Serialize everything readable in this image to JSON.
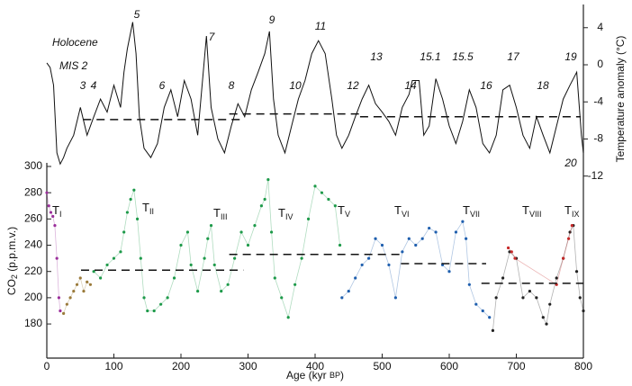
{
  "chart_data": {
    "type": "scatter",
    "x_label": {
      "main": "Age (kyr ",
      "small": "BP",
      "end": ")"
    },
    "y_label": {
      "main": "CO",
      "sub": "2",
      "end": " (p.p.m.v.)"
    },
    "y2_label": "Temperature anomaly (°C)",
    "xlim": [
      0,
      800
    ],
    "xticks": [
      0,
      100,
      200,
      300,
      400,
      500,
      600,
      700,
      800
    ],
    "ylim": [
      154,
      300
    ],
    "yticks": [
      180,
      200,
      220,
      240,
      260,
      280,
      300
    ],
    "y2lim": [
      -13,
      6.5
    ],
    "y2ticks": [
      4,
      0,
      -4,
      -8,
      -12
    ],
    "annotations": [
      "Holocene",
      "MIS 2",
      "3",
      "4",
      "5",
      "6",
      "7",
      "8",
      "9",
      "10",
      "11",
      "12",
      "13",
      "14",
      "15.1",
      "15.5",
      "16",
      "17",
      "18",
      "19",
      "20"
    ],
    "terminations": [
      {
        "main": "T",
        "sub": "I"
      },
      {
        "main": "T",
        "sub": "II"
      },
      {
        "main": "T",
        "sub": "III"
      },
      {
        "main": "T",
        "sub": "IV"
      },
      {
        "main": "T",
        "sub": "V"
      },
      {
        "main": "T",
        "sub": "VI"
      },
      {
        "main": "T",
        "sub": "VII"
      },
      {
        "main": "T",
        "sub": "VIII"
      },
      {
        "main": "T",
        "sub": "IX"
      }
    ],
    "temp_means": [
      {
        "x": [
          54,
          293
        ],
        "value": -5.9
      },
      {
        "x": [
          272,
          467
        ],
        "value": -5.3
      },
      {
        "x": [
          467,
          796
        ],
        "value": -5.6
      }
    ],
    "co2_means": [
      {
        "x": [
          51,
          293
        ],
        "value": 221
      },
      {
        "x": [
          272,
          528
        ],
        "value": 233
      },
      {
        "x": [
          528,
          655
        ],
        "value": 226
      },
      {
        "x": [
          648,
          800
        ],
        "value": 211
      }
    ],
    "series": [
      {
        "axis": "y2",
        "color": "#111111",
        "style": "line",
        "x": [
          0,
          5,
          10,
          15,
          20,
          25,
          30,
          40,
          50,
          60,
          70,
          80,
          90,
          100,
          110,
          115,
          120,
          128,
          133,
          138,
          145,
          155,
          165,
          175,
          185,
          195,
          205,
          215,
          225,
          238,
          245,
          255,
          265,
          275,
          285,
          295,
          305,
          315,
          325,
          332,
          338,
          345,
          355,
          365,
          375,
          385,
          395,
          405,
          415,
          425,
          432,
          440,
          450,
          460,
          470,
          480,
          490,
          500,
          510,
          520,
          530,
          540,
          545,
          555,
          562,
          570,
          580,
          590,
          600,
          610,
          620,
          630,
          640,
          650,
          660,
          670,
          680,
          690,
          700,
          710,
          720,
          730,
          740,
          750,
          760,
          770,
          780,
          790,
          797,
          800
        ],
        "values": [
          0.2,
          -0.3,
          -2.2,
          -9.5,
          -10.7,
          -10,
          -9,
          -7.6,
          -4.6,
          -7.6,
          -5.6,
          -3.7,
          -5.1,
          -2.2,
          -4.6,
          -0.8,
          1.7,
          4.6,
          1.2,
          -5.6,
          -9,
          -10,
          -8.5,
          -4.6,
          -2.7,
          -5.6,
          -1.7,
          -3.7,
          -7.6,
          3.1,
          -4.6,
          -8,
          -9.5,
          -6.6,
          -4.2,
          -5.6,
          -2.7,
          -0.8,
          1.2,
          3.6,
          -3.7,
          -7.6,
          -9.5,
          -6.6,
          -3.7,
          -1.7,
          1.2,
          2.6,
          1.2,
          -3.7,
          -7.6,
          -9,
          -7.6,
          -5.6,
          -3.7,
          -2.2,
          -4.2,
          -5.1,
          -6.1,
          -7.6,
          -4.6,
          -3.2,
          -1.7,
          -1.7,
          -7.6,
          -6.6,
          -1.5,
          -3.7,
          -6.6,
          -8.5,
          -6.1,
          -2.7,
          -4.6,
          -8.5,
          -9.5,
          -7.6,
          -2.7,
          -2.2,
          -4.6,
          -7.6,
          -9,
          -5.6,
          -7.6,
          -9.5,
          -6.6,
          -3.7,
          -2.2,
          -0.8,
          -7.6,
          -9.5
        ]
      },
      {
        "color": "#9b2f9b",
        "style": "dots",
        "x": [
          0,
          3,
          6,
          9,
          12,
          15,
          18,
          20
        ],
        "values": [
          280,
          270,
          265,
          262,
          255,
          230,
          200,
          190
        ]
      },
      {
        "color": "#9a7a3a",
        "style": "dots",
        "x": [
          25,
          30,
          35,
          40,
          45,
          50,
          55,
          60,
          65
        ],
        "values": [
          188,
          195,
          200,
          205,
          210,
          215,
          205,
          212,
          210
        ]
      },
      {
        "color": "#1e9a4a",
        "style": "dots",
        "x": [
          70,
          80,
          90,
          100,
          110,
          115,
          120,
          125,
          130,
          135,
          140,
          145,
          150,
          160,
          170,
          180,
          190,
          200,
          210,
          215,
          225,
          235,
          240,
          245,
          250,
          260,
          270,
          280,
          290,
          300,
          310,
          320,
          325,
          330,
          335,
          340,
          350,
          360,
          370,
          380,
          390,
          400,
          410,
          420,
          430,
          437
        ],
        "values": [
          220,
          215,
          225,
          230,
          235,
          250,
          265,
          275,
          282,
          260,
          230,
          200,
          190,
          190,
          195,
          200,
          215,
          240,
          250,
          225,
          205,
          230,
          245,
          255,
          225,
          205,
          210,
          230,
          250,
          240,
          255,
          270,
          275,
          290,
          250,
          215,
          200,
          185,
          210,
          230,
          260,
          285,
          280,
          275,
          270,
          240
        ]
      },
      {
        "color": "#1f5fae",
        "style": "dots",
        "x": [
          440,
          450,
          460,
          470,
          480,
          490,
          500,
          510,
          520,
          530,
          540,
          550,
          560,
          570,
          580,
          590,
          600,
          610,
          620,
          625,
          630,
          640,
          650,
          660
        ],
        "values": [
          200,
          205,
          215,
          225,
          230,
          245,
          240,
          225,
          200,
          235,
          245,
          240,
          245,
          253,
          250,
          225,
          220,
          250,
          258,
          245,
          210,
          195,
          190,
          185
        ]
      },
      {
        "color": "#222222",
        "style": "dots",
        "x": [
          665,
          670,
          680,
          690,
          700,
          710,
          720,
          730,
          740,
          745,
          750,
          760,
          770,
          780,
          785,
          790,
          795,
          800
        ],
        "values": [
          175,
          200,
          215,
          235,
          230,
          200,
          205,
          200,
          185,
          180,
          195,
          215,
          230,
          250,
          255,
          220,
          200,
          190
        ]
      },
      {
        "color": "#c62828",
        "style": "dots",
        "x": [
          688,
          693,
          698,
          760,
          770,
          778,
          783
        ],
        "values": [
          238,
          235,
          230,
          210,
          230,
          245,
          255
        ]
      }
    ]
  }
}
